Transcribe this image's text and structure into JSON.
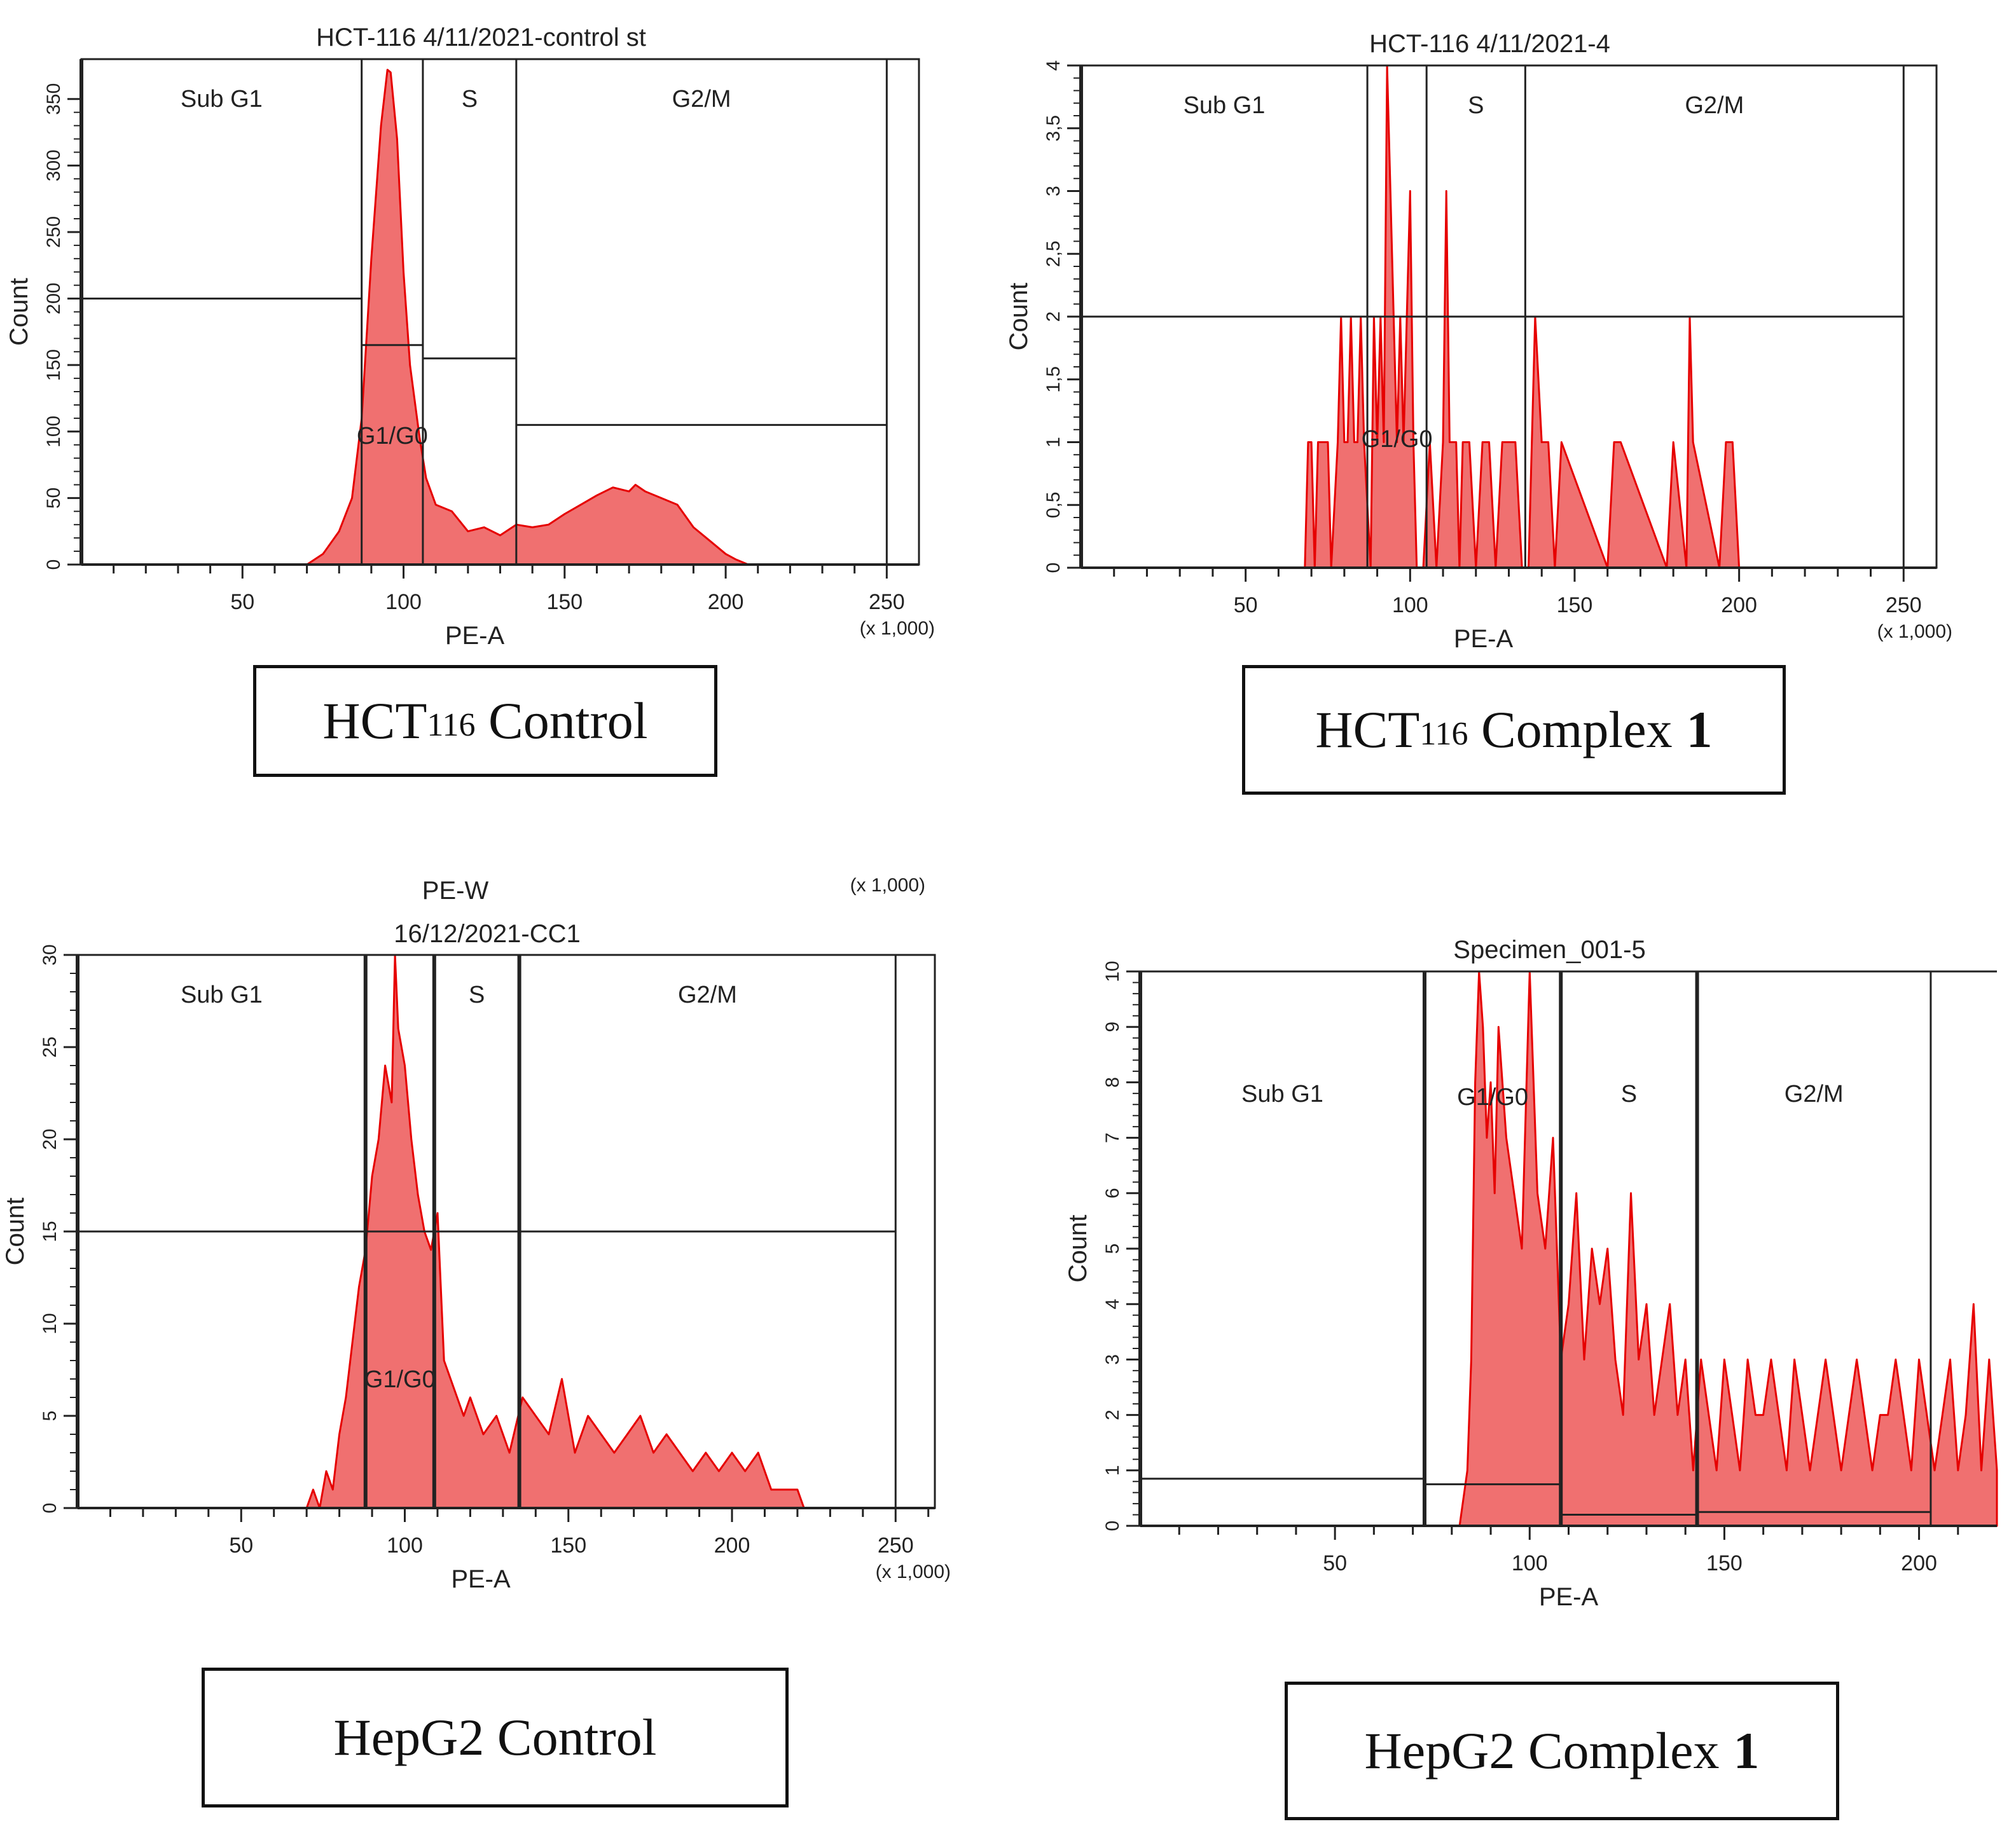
{
  "theme": {
    "fill_color": "#f07070",
    "stroke_color": "#e60000",
    "axis_color": "#222222",
    "gate_color": "#222222"
  },
  "captions": [
    {
      "main": "HCT",
      "sub": "116",
      "rest": "Control",
      "bold": ""
    },
    {
      "main": "HCT",
      "sub": "116",
      "rest": "Complex",
      "bold": "1"
    },
    {
      "main": "HepG2 Control",
      "sub": "",
      "rest": "",
      "bold": ""
    },
    {
      "main": "HepG2 Complex",
      "sub": "",
      "rest": "",
      "bold": "1"
    }
  ],
  "chart_data": [
    {
      "type": "histogram",
      "title": "HCT-116 4/11/2021-control st",
      "xlabel": "PE-A",
      "ylabel": "Count",
      "x_multiplier": "(x 1,000)",
      "xlim": [
        0,
        260
      ],
      "ylim": [
        0,
        380
      ],
      "x_ticks": [
        50,
        100,
        150,
        200,
        250
      ],
      "y_ticks": [
        0,
        50,
        100,
        150,
        200,
        250,
        300,
        350
      ],
      "y_tick_labels": [
        "0",
        "50",
        "100",
        "150",
        "200",
        "250",
        "300",
        "350"
      ],
      "gates": [
        {
          "label": "Sub G1",
          "x_start": 0,
          "x_end": 87,
          "y_level": 200
        },
        {
          "label": "G1/G0",
          "x_start": 87,
          "x_end": 106,
          "y_level": 165
        },
        {
          "label": "S",
          "x_start": 106,
          "x_end": 135,
          "y_level": 155
        },
        {
          "label": "G2/M",
          "x_start": 135,
          "x_end": 250,
          "y_level": 105
        }
      ],
      "series": [
        {
          "name": "HCT-116 control",
          "x": [
            70,
            75,
            80,
            84,
            87,
            90,
            93,
            95,
            96,
            98,
            100,
            102,
            105,
            107,
            110,
            115,
            120,
            125,
            130,
            135,
            140,
            145,
            150,
            155,
            160,
            165,
            170,
            172,
            175,
            180,
            185,
            190,
            195,
            200,
            203,
            207
          ],
          "values": [
            0,
            8,
            25,
            50,
            110,
            230,
            330,
            372,
            370,
            320,
            220,
            150,
            95,
            65,
            45,
            40,
            25,
            28,
            22,
            30,
            28,
            30,
            38,
            45,
            52,
            58,
            55,
            60,
            55,
            50,
            45,
            28,
            18,
            8,
            4,
            0
          ]
        }
      ]
    },
    {
      "type": "histogram",
      "title": "HCT-116 4/11/2021-4",
      "xlabel": "PE-A",
      "ylabel": "Count",
      "x_multiplier": "(x 1,000)",
      "xlim": [
        0,
        260
      ],
      "ylim": [
        0,
        4
      ],
      "x_ticks": [
        50,
        100,
        150,
        200,
        250
      ],
      "y_ticks": [
        0,
        0.5,
        1,
        1.5,
        2,
        2.5,
        3,
        3.5,
        4
      ],
      "y_tick_labels": [
        "0",
        "0,5",
        "1",
        "1,5",
        "2",
        "2,5",
        "3",
        "3,5",
        "4"
      ],
      "gates": [
        {
          "label": "Sub G1",
          "x_start": 0,
          "x_end": 87,
          "y_level": 2
        },
        {
          "label": "G1/G0",
          "x_start": 87,
          "x_end": 105,
          "y_level": 2
        },
        {
          "label": "S",
          "x_start": 105,
          "x_end": 135,
          "y_level": 2
        },
        {
          "label": "G2/M",
          "x_start": 135,
          "x_end": 250,
          "y_level": 2
        }
      ],
      "series": [
        {
          "name": "HCT-116 Complex 1",
          "x": [
            68,
            69,
            70,
            71,
            72,
            73,
            74,
            75,
            76,
            78,
            79,
            80,
            81,
            82,
            83,
            84,
            85,
            86,
            88,
            89,
            90,
            91,
            92,
            93,
            94,
            95,
            96,
            97,
            98,
            99,
            100,
            101,
            102,
            104,
            106,
            108,
            110,
            111,
            112,
            114,
            115,
            116,
            118,
            120,
            122,
            124,
            126,
            128,
            130,
            132,
            134,
            136,
            138,
            140,
            142,
            144,
            146,
            160,
            162,
            164,
            178,
            180,
            184,
            185,
            186,
            194,
            196,
            198,
            200
          ],
          "values": [
            0,
            1,
            1,
            0,
            1,
            1,
            1,
            1,
            0,
            1,
            2,
            1,
            1,
            2,
            1,
            1,
            2,
            1,
            0,
            2,
            1,
            2,
            1,
            4,
            3,
            2,
            1,
            2,
            1,
            2,
            3,
            1,
            0,
            0,
            1,
            0,
            1,
            3,
            1,
            1,
            0,
            1,
            1,
            0,
            1,
            1,
            0,
            1,
            1,
            1,
            0,
            0,
            2,
            1,
            1,
            0,
            1,
            0,
            1,
            1,
            0,
            1,
            0,
            2,
            1,
            0,
            1,
            1,
            0
          ]
        }
      ]
    },
    {
      "type": "histogram",
      "title": "16/12/2021-CC1",
      "header_label": "PE-W",
      "header_multiplier": "(x 1,000)",
      "xlabel": "PE-A",
      "ylabel": "Count",
      "x_multiplier": "(x 1,000)",
      "xlim": [
        0,
        262
      ],
      "ylim": [
        0,
        30
      ],
      "x_ticks": [
        50,
        100,
        150,
        200,
        250
      ],
      "y_ticks": [
        0,
        5,
        10,
        15,
        20,
        25,
        30
      ],
      "y_tick_labels": [
        "0",
        "5",
        "10",
        "15",
        "20",
        "25",
        "30"
      ],
      "gates": [
        {
          "label": "Sub G1",
          "x_start": 0,
          "x_end": 88,
          "y_level": 15
        },
        {
          "label": "G1/G0",
          "x_start": 88,
          "x_end": 109,
          "y_level": 15
        },
        {
          "label": "S",
          "x_start": 109,
          "x_end": 135,
          "y_level": 15
        },
        {
          "label": "G2/M",
          "x_start": 135,
          "x_end": 250,
          "y_level": 15
        }
      ],
      "series": [
        {
          "name": "HepG2 control",
          "x": [
            70,
            72,
            74,
            76,
            78,
            80,
            82,
            84,
            86,
            88,
            90,
            92,
            94,
            96,
            97,
            98,
            100,
            102,
            104,
            106,
            108,
            110,
            112,
            114,
            116,
            118,
            120,
            124,
            128,
            132,
            136,
            140,
            144,
            148,
            152,
            156,
            160,
            164,
            168,
            172,
            176,
            180,
            184,
            188,
            192,
            196,
            200,
            204,
            208,
            212,
            216,
            220,
            222
          ],
          "values": [
            0,
            1,
            0,
            2,
            1,
            4,
            6,
            9,
            12,
            14,
            18,
            20,
            24,
            22,
            30,
            26,
            24,
            20,
            17,
            15,
            14,
            16,
            8,
            7,
            6,
            5,
            6,
            4,
            5,
            3,
            6,
            5,
            4,
            7,
            3,
            5,
            4,
            3,
            4,
            5,
            3,
            4,
            3,
            2,
            3,
            2,
            3,
            2,
            3,
            1,
            1,
            1,
            0
          ]
        }
      ]
    },
    {
      "type": "histogram",
      "title": "Specimen_001-5",
      "xlabel": "PE-A",
      "ylabel": "Count",
      "xlim": [
        0,
        220
      ],
      "ylim": [
        0,
        10
      ],
      "x_ticks": [
        50,
        100,
        150,
        200
      ],
      "y_ticks": [
        0,
        1,
        2,
        3,
        4,
        5,
        6,
        7,
        8,
        9,
        10
      ],
      "y_tick_labels": [
        "0",
        "1",
        "2",
        "3",
        "4",
        "5",
        "6",
        "7",
        "8",
        "9",
        "10"
      ],
      "gates": [
        {
          "label": "Sub G1",
          "x_start": 0,
          "x_end": 73,
          "y_level": 0.85
        },
        {
          "label": "G1/G0",
          "x_start": 73,
          "x_end": 108,
          "y_level": 0.75
        },
        {
          "label": "S",
          "x_start": 108,
          "x_end": 143,
          "y_level": 0.2
        },
        {
          "label": "G2/M",
          "x_start": 143,
          "x_end": 203,
          "y_level": 0.25
        }
      ],
      "series": [
        {
          "name": "HepG2 Complex 1",
          "x": [
            82,
            84,
            85,
            86,
            87,
            88,
            89,
            90,
            91,
            92,
            94,
            96,
            98,
            100,
            102,
            104,
            106,
            108,
            110,
            112,
            114,
            116,
            118,
            120,
            122,
            124,
            126,
            128,
            130,
            132,
            134,
            136,
            138,
            140,
            142,
            144,
            146,
            148,
            150,
            152,
            154,
            156,
            158,
            160,
            162,
            164,
            166,
            168,
            170,
            172,
            174,
            176,
            178,
            180,
            182,
            184,
            186,
            188,
            190,
            192,
            194,
            196,
            198,
            200,
            202,
            204,
            206,
            208,
            210,
            212,
            214,
            216,
            218,
            220
          ],
          "values": [
            0,
            1,
            3,
            8,
            10,
            9,
            7,
            8,
            6,
            9,
            7,
            6,
            5,
            10,
            6,
            5,
            7,
            3,
            4,
            6,
            3,
            5,
            4,
            5,
            3,
            2,
            6,
            3,
            4,
            2,
            3,
            4,
            2,
            3,
            1,
            3,
            2,
            1,
            3,
            2,
            1,
            3,
            2,
            2,
            3,
            2,
            1,
            3,
            2,
            1,
            2,
            3,
            2,
            1,
            2,
            3,
            2,
            1,
            2,
            2,
            3,
            2,
            1,
            3,
            2,
            1,
            2,
            3,
            1,
            2,
            4,
            1,
            3,
            1
          ]
        }
      ]
    }
  ]
}
